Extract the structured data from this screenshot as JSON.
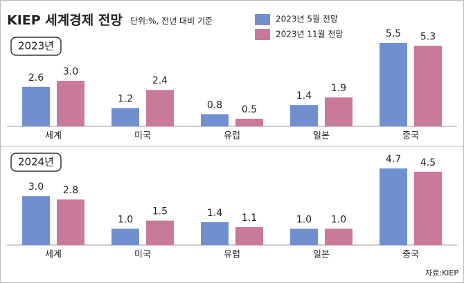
{
  "title": "KIEP 세계경제 전망",
  "subtitle": "단위:%, 전년 대비 기준",
  "source": "자료:KIEP",
  "chart_data": [
    {
      "type": "bar",
      "title": "2023년",
      "categories": [
        "세계",
        "미국",
        "유럽",
        "일본",
        "중국"
      ],
      "series": [
        {
          "name": "2023년 5월 전망",
          "color": "#6f8fcf",
          "values": [
            2.6,
            1.2,
            0.8,
            1.4,
            5.5
          ],
          "value_labels": [
            "2.6",
            "1.2",
            "0.8",
            "1.4",
            "5.5"
          ]
        },
        {
          "name": "2023년 11월 전망",
          "color": "#c9799a",
          "values": [
            3,
            2.4,
            0.5,
            1.9,
            5.3
          ],
          "value_labels": [
            "3.0",
            "2.4",
            "0.5",
            "1.9",
            "5.3"
          ]
        }
      ]
    },
    {
      "type": "bar",
      "title": "2024년",
      "categories": [
        "세계",
        "미국",
        "유럽",
        "일본",
        "중국"
      ],
      "series": [
        {
          "color": "#6f8fcf",
          "values": [
            3,
            1,
            1.4,
            1,
            4.7
          ],
          "value_labels": [
            "3.0",
            "1.0",
            "1.4",
            "1.0",
            "4.7"
          ]
        },
        {
          "color": "#c9799a",
          "values": [
            2.8,
            1.5,
            1.1,
            1,
            4.5
          ],
          "value_labels": [
            "2.8",
            "1.5",
            "1.1",
            "1.0",
            "4.5"
          ]
        }
      ]
    }
  ]
}
